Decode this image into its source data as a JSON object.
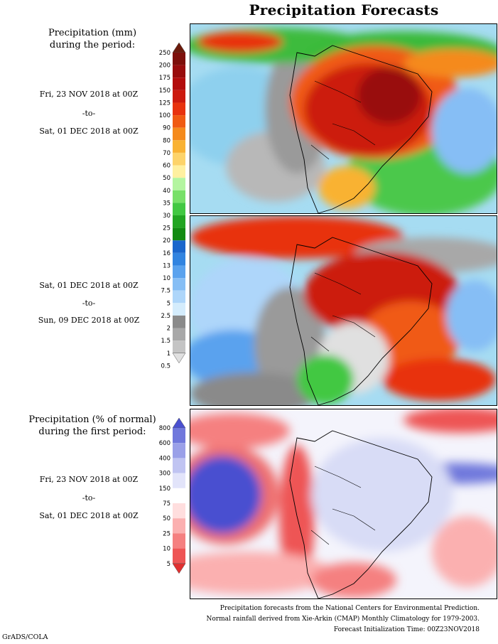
{
  "title": "Precipitation Forecasts",
  "panel1": {
    "heading_line1": "Precipitation (mm)",
    "heading_line2": "during the period:",
    "period1": {
      "start": "Fri, 23 NOV 2018 at 00Z",
      "sep": "-to-",
      "end": "Sat, 01 DEC 2018 at 00Z"
    },
    "period2": {
      "start": "Sat, 01 DEC 2018 at 00Z",
      "sep": "-to-",
      "end": "Sun, 09 DEC 2018 at 00Z"
    },
    "colorbar": {
      "labels": [
        "250",
        "200",
        "175",
        "150",
        "125",
        "100",
        "90",
        "80",
        "70",
        "60",
        "50",
        "40",
        "35",
        "30",
        "25",
        "20",
        "16",
        "13",
        "10",
        "7.5",
        "5",
        "2.5",
        "2",
        "1.5",
        "1",
        "0.5"
      ],
      "colors": [
        "#6b1a0b",
        "#7d0f0a",
        "#990c0c",
        "#b30c0c",
        "#cc1a0e",
        "#e8320e",
        "#f05a12",
        "#f58a1c",
        "#f9b233",
        "#fdd36a",
        "#fff0a0",
        "#b4f5a0",
        "#78e068",
        "#42c842",
        "#22a522",
        "#128b12",
        "#1a66cc",
        "#3284e0",
        "#5aa2ee",
        "#86bef5",
        "#aed6fa",
        "#d4ecfc",
        "#8a8a8a",
        "#a8a8a8",
        "#c4c4c4",
        "#e0e0e0"
      ]
    }
  },
  "panel3": {
    "heading_line1": "Precipitation (% of normal)",
    "heading_line2": "during the first period:",
    "period": {
      "start": "Fri, 23 NOV 2018 at 00Z",
      "sep": "-to-",
      "end": "Sat, 01 DEC 2018 at 00Z"
    },
    "colorbar": {
      "labels": [
        "800",
        "600",
        "400",
        "300",
        "150",
        "75",
        "50",
        "25",
        "10",
        "5"
      ],
      "colors": [
        "#4a50d0",
        "#7078dc",
        "#9aa0e8",
        "#c0c4f2",
        "#e2e4fa",
        "#ffffff",
        "#ffdede",
        "#fbb0b0",
        "#f58080",
        "#ee5555",
        "#e03030"
      ]
    }
  },
  "footer": {
    "line1": "Precipitation forecasts from the National Centers for Environmental Prediction.",
    "line2": "Normal rainfall derived from Xie-Arkin (CMAP) Monthly Climatology for 1979-2003.",
    "line3": "Forecast Initialization Time: 00Z23NOV2018"
  },
  "credit": "GrADS/COLA"
}
